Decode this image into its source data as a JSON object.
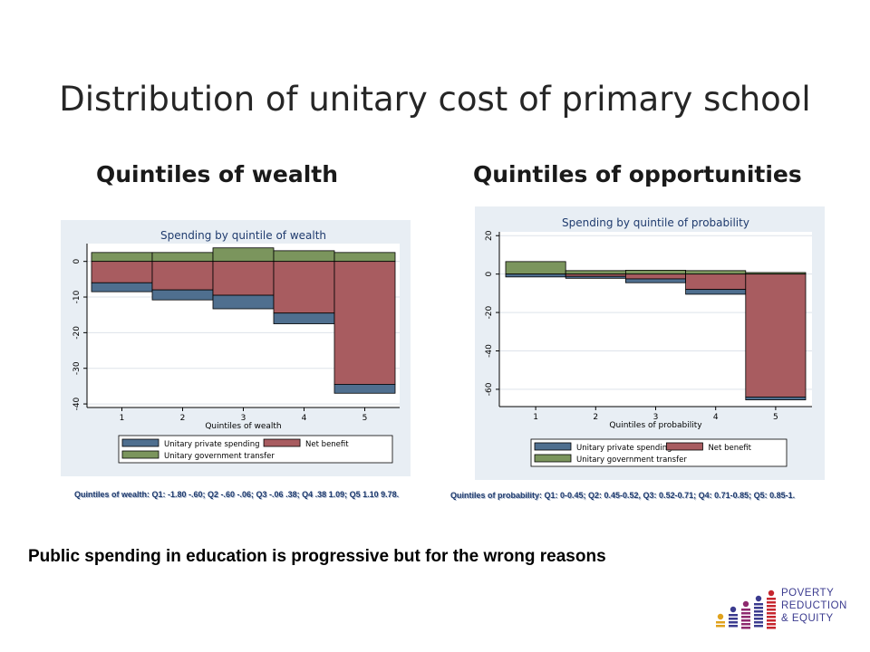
{
  "title": "Distribution of unitary cost of primary school",
  "subheads": {
    "left": "Quintiles of wealth",
    "right": "Quintiles of opportunities"
  },
  "notes": {
    "left": "Quintiles of wealth: Q1: -1.80 -.60; Q2 -.60 -.06; Q3 -.06   .38; Q4 .38 1.09; Q5 1.10   9.78.",
    "right": "Quintiles of probability: Q1: 0-0.45; Q2: 0.45-0.52, Q3: 0.52-0.71; Q4: 0.71-0.85; Q5: 0.85-1."
  },
  "bottom_text": "Public spending in education is progressive but for the wrong reasons",
  "logo": {
    "line1": "POVERTY",
    "line2": "REDUCTION",
    "line3": "& EQUITY"
  },
  "colors": {
    "private": "#4f6f8f",
    "net": "#a85c60",
    "transfer": "#7b955d",
    "panel": "#e8eef4"
  },
  "chart_data": [
    {
      "type": "bar",
      "title": "Spending by quintile of wealth",
      "xlabel": "Quintiles of wealth",
      "categories": [
        "1",
        "2",
        "3",
        "4",
        "5"
      ],
      "yticks": [
        0,
        -10,
        -20,
        -30,
        -40
      ],
      "ylim": [
        -41,
        5
      ],
      "legend": [
        "Unitary private spending",
        "Net benefit",
        "Unitary government transfer"
      ],
      "series": [
        {
          "name": "Unitary government transfer",
          "values": [
            2.5,
            2.5,
            3.8,
            3,
            2.5
          ]
        },
        {
          "name": "Net benefit",
          "values": [
            -6,
            -8,
            -9.5,
            -14.5,
            -34.5
          ]
        },
        {
          "name": "Unitary private spending",
          "values": [
            -2.5,
            -2.8,
            -3.8,
            -3,
            -2.5
          ]
        }
      ]
    },
    {
      "type": "bar",
      "title": "Spending by quintile of probability",
      "xlabel": "Quintiles of probability",
      "categories": [
        "1",
        "2",
        "3",
        "4",
        "5"
      ],
      "yticks": [
        20,
        0,
        -20,
        -40,
        -60
      ],
      "ylim": [
        -69,
        22
      ],
      "legend": [
        "Unitary private spending",
        "Net benefit",
        "Unitary government transfer"
      ],
      "series": [
        {
          "name": "Unitary government transfer",
          "values": [
            6.5,
            1.8,
            2.0,
            1.8,
            0.8
          ]
        },
        {
          "name": "Net benefit",
          "values": [
            0,
            -1.2,
            -2.5,
            -8.0,
            -64.0
          ]
        },
        {
          "name": "Unitary private spending",
          "values": [
            -1.5,
            -1.0,
            -2.0,
            -2.5,
            -1.5
          ]
        }
      ]
    }
  ]
}
